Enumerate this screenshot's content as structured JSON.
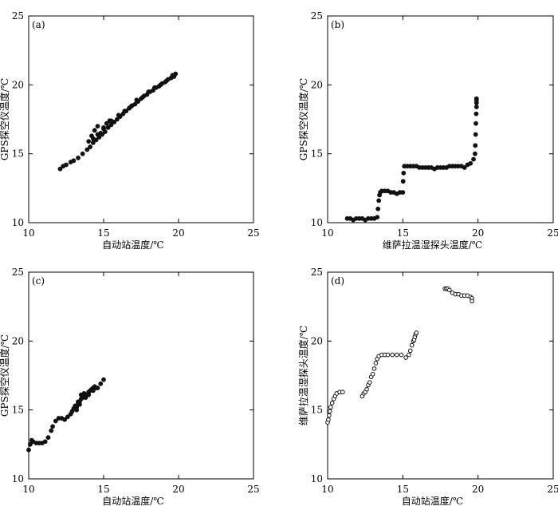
{
  "chart_data": [
    {
      "type": "scatter",
      "panel_label": "(a)",
      "xlabel": "自动站温度/℃",
      "ylabel": "GPS探空仪温度/℃",
      "xlim": [
        10,
        25
      ],
      "ylim": [
        10,
        25
      ],
      "xticks": [
        "10",
        "15",
        "20",
        "25"
      ],
      "yticks": [
        "10",
        "15",
        "20",
        "25"
      ],
      "marker": "filled",
      "series": [
        {
          "x": [
            12.1,
            12.3,
            12.5,
            12.8,
            13.0,
            13.3,
            13.6,
            13.9,
            14.1,
            14.3,
            14.5,
            14.7,
            14.9,
            15.1,
            15.3,
            15.5,
            15.7,
            15.9,
            16.1,
            16.3,
            16.5,
            16.7,
            16.9,
            17.1,
            17.3,
            17.5,
            17.7,
            17.9,
            18.1,
            18.3,
            18.5,
            18.7,
            18.9,
            19.1,
            19.3,
            19.5,
            19.7,
            19.8,
            14.2,
            14.4,
            14.6,
            14.8,
            15.0,
            15.2,
            15.4,
            14.0,
            14.3,
            14.6,
            15.0,
            15.5,
            16.0,
            16.4,
            16.8,
            17.2,
            17.6,
            18.0,
            18.4,
            18.8,
            19.2,
            19.6
          ],
          "y": [
            13.9,
            14.1,
            14.2,
            14.4,
            14.5,
            14.7,
            15.0,
            15.3,
            15.5,
            15.8,
            16.0,
            16.2,
            16.4,
            16.6,
            16.9,
            17.1,
            17.3,
            17.5,
            17.7,
            17.9,
            18.1,
            18.3,
            18.5,
            18.6,
            18.8,
            19.0,
            19.2,
            19.3,
            19.5,
            19.6,
            19.8,
            19.9,
            20.1,
            20.2,
            20.4,
            20.5,
            20.6,
            20.8,
            16.3,
            16.7,
            17.0,
            16.5,
            16.8,
            17.2,
            17.4,
            15.9,
            16.1,
            16.4,
            16.9,
            17.4,
            17.8,
            18.1,
            18.4,
            18.9,
            19.1,
            19.5,
            19.8,
            20.0,
            20.3,
            20.7
          ]
        }
      ]
    },
    {
      "type": "scatter",
      "panel_label": "(b)",
      "xlabel": "维萨拉温湿探头温度/℃",
      "ylabel": "GPS探空仪温度/℃",
      "xlim": [
        10,
        25
      ],
      "ylim": [
        10,
        25
      ],
      "xticks": [
        "10",
        "15",
        "20",
        "25"
      ],
      "yticks": [
        "10",
        "15",
        "20",
        "25"
      ],
      "marker": "filled",
      "series": [
        {
          "x": [
            11.3,
            11.5,
            11.7,
            11.9,
            12.1,
            12.3,
            12.5,
            12.7,
            12.9,
            13.1,
            13.3,
            13.35,
            13.4,
            13.45,
            13.5,
            13.6,
            13.8,
            14.0,
            14.2,
            14.4,
            14.6,
            14.8,
            15.0,
            15.02,
            15.05,
            15.1,
            15.3,
            15.5,
            15.7,
            15.9,
            16.1,
            16.3,
            16.5,
            16.7,
            16.9,
            17.1,
            17.3,
            17.5,
            17.7,
            17.9,
            18.1,
            18.3,
            18.5,
            18.7,
            18.9,
            19.1,
            19.3,
            19.5,
            19.7,
            19.8,
            19.82,
            19.84,
            19.86,
            19.88,
            19.9,
            19.9,
            19.9,
            19.9
          ],
          "y": [
            10.3,
            10.3,
            10.2,
            10.3,
            10.3,
            10.3,
            10.2,
            10.3,
            10.3,
            10.3,
            10.4,
            11.0,
            11.6,
            12.0,
            12.2,
            12.3,
            12.3,
            12.3,
            12.2,
            12.2,
            12.1,
            12.2,
            12.2,
            13.0,
            13.6,
            14.1,
            14.1,
            14.1,
            14.1,
            14.1,
            14.0,
            14.0,
            14.0,
            14.0,
            14.0,
            13.9,
            14.0,
            14.0,
            14.0,
            14.0,
            14.1,
            14.1,
            14.1,
            14.1,
            14.1,
            14.0,
            14.2,
            14.3,
            14.6,
            15.0,
            15.6,
            16.4,
            17.2,
            17.9,
            18.4,
            18.7,
            18.9,
            19.0
          ]
        }
      ]
    },
    {
      "type": "scatter",
      "panel_label": "(c)",
      "xlabel": "自动站温度/℃",
      "ylabel": "GPS探空仪温度/℃",
      "xlim": [
        10,
        25
      ],
      "ylim": [
        10,
        25
      ],
      "xticks": [
        "10",
        "15",
        "20",
        "25"
      ],
      "yticks": [
        "10",
        "15",
        "20",
        "25"
      ],
      "marker": "filled",
      "series": [
        {
          "x": [
            10.0,
            10.1,
            10.2,
            10.3,
            10.5,
            10.7,
            10.9,
            11.1,
            11.3,
            11.5,
            11.6,
            11.8,
            12.0,
            12.2,
            12.4,
            12.6,
            12.8,
            12.9,
            13.0,
            13.1,
            13.2,
            13.3,
            13.4,
            13.5,
            13.6,
            13.7,
            13.8,
            13.9,
            14.0,
            14.1,
            14.2,
            14.3,
            14.4,
            14.5,
            14.6,
            14.8,
            15.0,
            13.3,
            13.5,
            13.7,
            14.0,
            14.3,
            13.2,
            13.4
          ],
          "y": [
            12.1,
            12.5,
            12.8,
            12.7,
            12.6,
            12.6,
            12.6,
            12.7,
            13.0,
            13.5,
            13.8,
            14.2,
            14.4,
            14.4,
            14.3,
            14.5,
            14.7,
            14.9,
            15.1,
            15.3,
            15.2,
            15.5,
            15.6,
            15.8,
            15.9,
            16.0,
            15.9,
            16.1,
            16.3,
            16.4,
            16.5,
            16.6,
            16.7,
            16.6,
            16.6,
            16.9,
            17.2,
            15.6,
            16.1,
            16.2,
            16.1,
            16.4,
            15.0,
            15.4
          ]
        }
      ]
    },
    {
      "type": "scatter",
      "panel_label": "(d)",
      "xlabel": "自动站温度/℃",
      "ylabel": "维萨拉温湿探头温度/℃",
      "xlim": [
        10,
        25
      ],
      "ylim": [
        10,
        25
      ],
      "xticks": [
        "10",
        "15",
        "20",
        "25"
      ],
      "yticks": [
        "10",
        "15",
        "20",
        "25"
      ],
      "marker": "hollow",
      "series": [
        {
          "x": [
            10.0,
            10.05,
            10.1,
            10.15,
            10.2,
            10.3,
            10.4,
            10.5,
            10.6,
            10.8,
            11.0,
            12.3,
            12.4,
            12.5,
            12.6,
            12.7,
            12.8,
            12.9,
            13.0,
            13.1,
            13.2,
            13.3,
            13.4,
            13.6,
            13.8,
            14.0,
            14.3,
            14.6,
            14.9,
            15.2,
            15.4,
            15.5,
            15.6,
            15.7,
            15.75,
            15.8,
            15.85,
            15.9,
            17.8,
            17.9,
            18.0,
            18.1,
            18.3,
            18.5,
            18.7,
            18.9,
            19.1,
            19.3,
            19.5,
            19.6,
            19.6
          ],
          "y": [
            14.1,
            14.3,
            14.6,
            14.9,
            15.2,
            15.5,
            15.8,
            16.0,
            16.2,
            16.3,
            16.3,
            16.0,
            16.2,
            16.3,
            16.5,
            16.8,
            17.0,
            17.4,
            17.6,
            18.0,
            18.4,
            18.7,
            18.9,
            19.0,
            19.0,
            19.0,
            19.0,
            19.0,
            19.0,
            18.8,
            19.0,
            19.3,
            19.7,
            20.0,
            20.1,
            20.3,
            20.5,
            20.6,
            23.8,
            23.8,
            23.8,
            23.7,
            23.5,
            23.4,
            23.4,
            23.3,
            23.3,
            23.3,
            23.2,
            23.1,
            22.9
          ]
        }
      ]
    }
  ]
}
